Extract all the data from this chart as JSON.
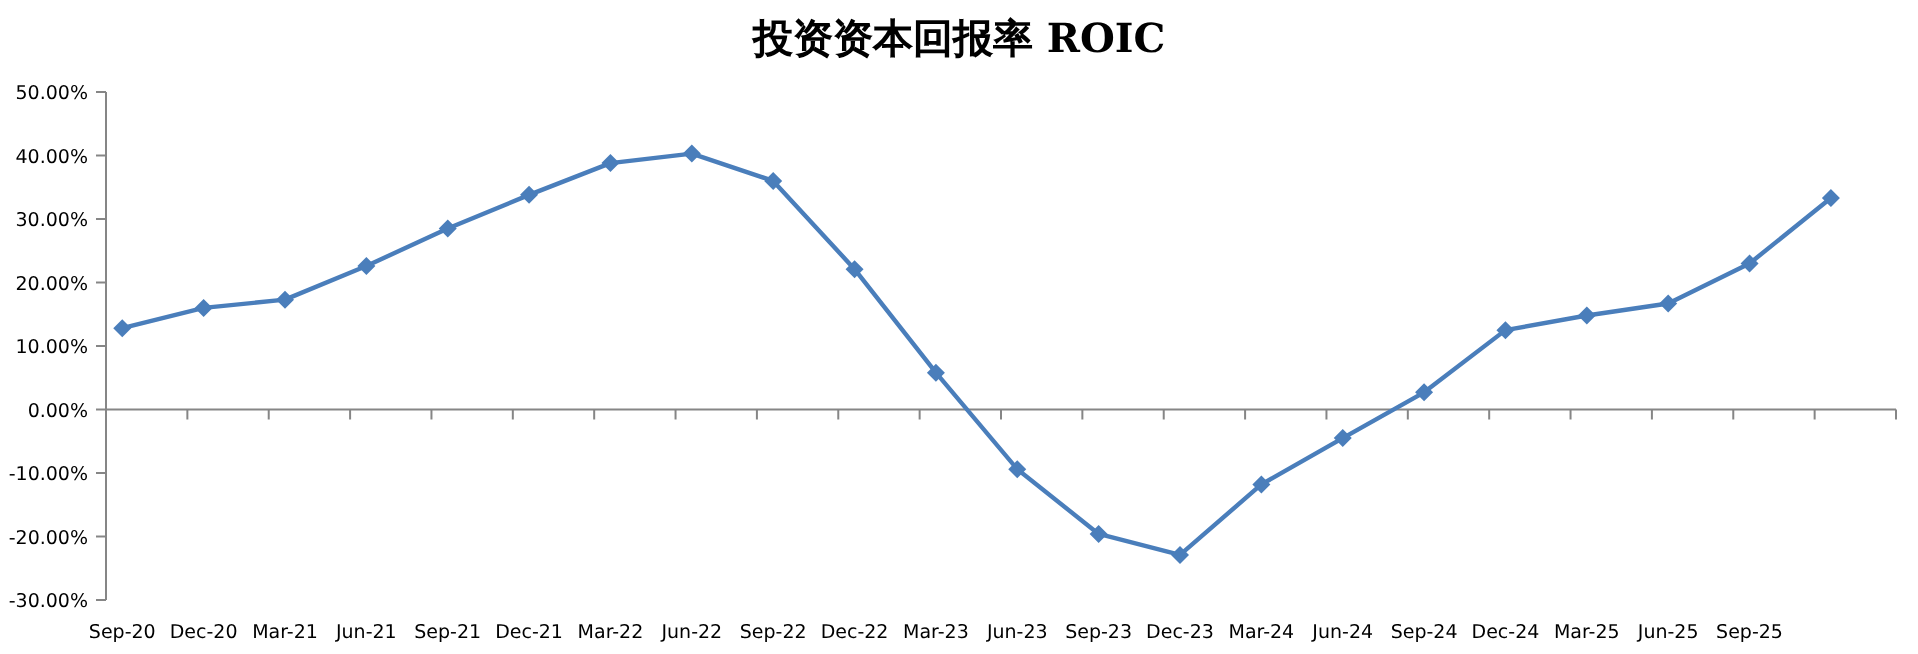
{
  "chart_data": {
    "type": "line",
    "title": "投资资本回报率 ROIC",
    "categories": [
      "Sep-20",
      "Dec-20",
      "Mar-21",
      "Jun-21",
      "Sep-21",
      "Dec-21",
      "Mar-22",
      "Jun-22",
      "Sep-22",
      "Dec-22",
      "Mar-23",
      "Jun-23",
      "Sep-23",
      "Dec-23",
      "Mar-24",
      "Jun-24",
      "Sep-24",
      "Dec-24",
      "Mar-25",
      "Jun-25",
      "Sep-25",
      null
    ],
    "series": [
      {
        "color": "#4a7ebb",
        "values": [
          12.8,
          16.0,
          17.3,
          22.6,
          28.5,
          33.8,
          38.8,
          40.3,
          36.0,
          22.1,
          5.8,
          -9.4,
          -19.6,
          -22.9,
          -11.8,
          -4.5,
          2.7,
          12.5,
          14.8,
          16.7,
          23.0,
          33.3
        ]
      }
    ],
    "ylim": [
      -30,
      50
    ],
    "yticks": [
      {
        "value": -30,
        "label": "-30.00%"
      },
      {
        "value": -20,
        "label": "-20.00%"
      },
      {
        "value": -10,
        "label": "-10.00%"
      },
      {
        "value": 0,
        "label": "0.00%"
      },
      {
        "value": 10,
        "label": "10.00%"
      },
      {
        "value": 20,
        "label": "20.00%"
      },
      {
        "value": 30,
        "label": "30.00%"
      },
      {
        "value": 40,
        "label": "40.00%"
      },
      {
        "value": 50,
        "label": "50.00%"
      }
    ],
    "marker": "diamond",
    "line_style": "solid"
  }
}
